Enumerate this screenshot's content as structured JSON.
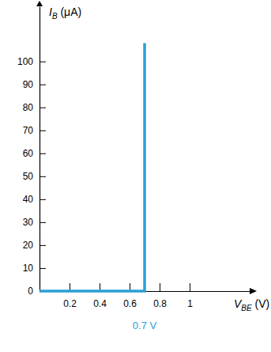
{
  "chart_data": {
    "type": "line",
    "x_label": "VBE (V)",
    "y_label": "IB (μA)",
    "x": [
      0,
      0.7,
      0.7
    ],
    "values": [
      0,
      0,
      108
    ],
    "color": "#2a9fd6",
    "xlim": [
      0,
      1.4
    ],
    "ylim": [
      0,
      124
    ],
    "xticks": [
      0.2,
      0.4,
      0.6,
      0.8,
      1
    ],
    "yticks": [
      0,
      10,
      20,
      30,
      40,
      50,
      60,
      70,
      80,
      90,
      100
    ],
    "grid": false,
    "annotations": [
      {
        "text": "0.7 V",
        "x": 0.7
      }
    ]
  }
}
